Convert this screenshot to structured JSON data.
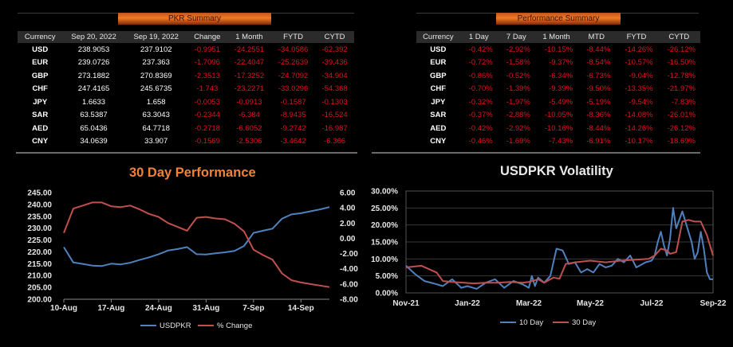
{
  "pkr_summary": {
    "title": "PKR Summary",
    "headers": [
      "Currency",
      "Sep 20, 2022",
      "Sep 19, 2022",
      "Change",
      "1 Month",
      "FYTD",
      "CYTD"
    ],
    "rows": [
      [
        "USD",
        "238.9053",
        "237.9102",
        "-0.9951",
        "-24.2551",
        "-34.0586",
        "-62.392"
      ],
      [
        "EUR",
        "239.0726",
        "237.363",
        "-1.7096",
        "-22.4047",
        "-25.2639",
        "-39.436"
      ],
      [
        "GBP",
        "273.1882",
        "270.8369",
        "-2.3513",
        "-17.3252",
        "-24.7092",
        "-34.904"
      ],
      [
        "CHF",
        "247.4165",
        "245.6735",
        "-1.743",
        "-23.2271",
        "-33.0296",
        "-54.368"
      ],
      [
        "JPY",
        "1.6633",
        "1.658",
        "-0.0053",
        "-0.0913",
        "-0.1587",
        "-0.1303"
      ],
      [
        "SAR",
        "63.5387",
        "63.3043",
        "-0.2344",
        "-6.384",
        "-8.9435",
        "-16.524"
      ],
      [
        "AED",
        "65.0436",
        "64.7718",
        "-0.2718",
        "-6.6052",
        "-9.2742",
        "-16.987"
      ],
      [
        "CNY",
        "34.0639",
        "33.907",
        "-0.1569",
        "-2.5306",
        "-3.4642",
        "-6.366"
      ]
    ]
  },
  "performance_summary": {
    "title": "Performance Summary",
    "headers": [
      "Currency",
      "1 Day",
      "7 Day",
      "1 Month",
      "MTD",
      "FYTD",
      "CYTD"
    ],
    "rows": [
      [
        "USD",
        "-0.42%",
        "-2.92%",
        "-10.15%",
        "-8.44%",
        "-14.26%",
        "-26.12%"
      ],
      [
        "EUR",
        "-0.72%",
        "-1.58%",
        "-9.37%",
        "-8.54%",
        "-10.57%",
        "-16.50%"
      ],
      [
        "GBP",
        "-0.86%",
        "-0.52%",
        "-6.34%",
        "-6.73%",
        "-9.04%",
        "-12.78%"
      ],
      [
        "CHF",
        "-0.70%",
        "-1.39%",
        "-9.39%",
        "-9.50%",
        "-13.35%",
        "-21.97%"
      ],
      [
        "JPY",
        "-0.32%",
        "-1.97%",
        "-5.49%",
        "-5.19%",
        "-9.54%",
        "-7.83%"
      ],
      [
        "SAR",
        "-0.37%",
        "-2.88%",
        "-10.05%",
        "-8.36%",
        "-14.08%",
        "-26.01%"
      ],
      [
        "AED",
        "-0.42%",
        "-2.92%",
        "-10.16%",
        "-8.44%",
        "-14.26%",
        "-26.12%"
      ],
      [
        "CNY",
        "-0.46%",
        "-1.69%",
        "-7.43%",
        "-6.91%",
        "-10.17%",
        "-18.69%"
      ]
    ]
  },
  "colors": {
    "accent": "#f0823a",
    "negative": "#e0141c",
    "series_blue": "#4f81bd",
    "series_red": "#c0504d",
    "grid": "#3a3a3a"
  },
  "chart_data": [
    {
      "type": "line",
      "title": "30 Day Performance",
      "x_tick_labels": [
        "10-Aug",
        "17-Aug",
        "24-Aug",
        "31-Aug",
        "7-Sep",
        "14-Sep"
      ],
      "x_tick_index": [
        0,
        5,
        10,
        15,
        20,
        25
      ],
      "y_left_ticks": [
        "245.00",
        "240.00",
        "235.00",
        "230.00",
        "225.00",
        "220.00",
        "215.00",
        "210.00",
        "205.00",
        "200.00"
      ],
      "y_right_ticks": [
        "6.00",
        "4.00",
        "2.00",
        "0.00",
        "-2.00",
        "-4.00",
        "-6.00",
        "-8.00"
      ],
      "ylim_left": [
        200,
        245
      ],
      "ylim_right": [
        -8,
        6
      ],
      "legend_position": "bottom",
      "series": [
        {
          "name": "USDPKR",
          "axis": "left",
          "values": [
            222.0,
            215.5,
            214.9,
            214.2,
            214.0,
            215.0,
            214.7,
            215.4,
            216.6,
            217.7,
            219.0,
            220.6,
            221.2,
            222.0,
            219.0,
            218.9,
            219.4,
            219.8,
            220.4,
            222.5,
            228.0,
            228.9,
            229.8,
            234.0,
            235.8,
            236.3,
            237.1,
            237.9,
            238.9
          ]
        },
        {
          "name": "% Change",
          "axis": "right",
          "values": [
            0.7,
            3.9,
            4.3,
            4.7,
            4.7,
            4.2,
            4.1,
            4.3,
            3.8,
            3.2,
            2.8,
            2.0,
            1.5,
            1.0,
            2.7,
            2.8,
            2.6,
            2.5,
            1.9,
            0.9,
            -1.5,
            -2.2,
            -2.8,
            -4.6,
            -5.5,
            -5.8,
            -6.0,
            -6.2,
            -6.4
          ]
        }
      ]
    },
    {
      "type": "line",
      "title": "USDPKR Volatility",
      "x_tick_labels": [
        "Nov-21",
        "Jan-22",
        "Mar-22",
        "May-22",
        "Jul-22",
        "Sep-22"
      ],
      "x_tick_positions": [
        0,
        2,
        4,
        6,
        8,
        10
      ],
      "y_ticks": [
        "30.00%",
        "25.00%",
        "20.00%",
        "15.00%",
        "10.00%",
        "5.00%",
        "0.00%"
      ],
      "ylim": [
        0,
        30
      ],
      "legend_position": "bottom",
      "series": [
        {
          "name": "10 Day",
          "x": [
            0,
            0.3,
            0.6,
            0.9,
            1.2,
            1.5,
            1.8,
            2.0,
            2.3,
            2.6,
            2.9,
            3.2,
            3.5,
            3.8,
            4.0,
            4.1,
            4.2,
            4.3,
            4.5,
            4.7,
            4.9,
            5.1,
            5.3,
            5.5,
            5.7,
            5.9,
            6.1,
            6.3,
            6.5,
            6.7,
            6.9,
            7.1,
            7.3,
            7.5,
            7.8,
            8.0,
            8.1,
            8.2,
            8.3,
            8.4,
            8.5,
            8.6,
            8.7,
            8.8,
            9.0,
            9.2,
            9.3,
            9.4,
            9.5,
            9.6,
            9.7,
            9.8,
            9.9,
            10.0
          ],
          "values": [
            8.0,
            5.5,
            3.5,
            2.8,
            2.0,
            4.0,
            1.5,
            2.0,
            1.2,
            3.0,
            4.0,
            1.5,
            3.5,
            2.5,
            1.5,
            5.0,
            2.0,
            4.5,
            3.0,
            5.0,
            13.0,
            12.5,
            8.5,
            9.0,
            6.0,
            7.0,
            6.0,
            8.5,
            7.5,
            8.0,
            10.0,
            9.0,
            11.0,
            7.5,
            9.0,
            9.5,
            11.0,
            15.0,
            18.0,
            14.0,
            11.0,
            16.0,
            25.0,
            19.0,
            24.0,
            18.0,
            15.0,
            10.0,
            12.0,
            18.0,
            13.0,
            6.0,
            4.0,
            4.0
          ]
        },
        {
          "name": "30 Day",
          "x": [
            0,
            0.5,
            1.0,
            1.2,
            1.5,
            1.9,
            2.2,
            2.6,
            3.0,
            3.4,
            3.8,
            4.0,
            4.3,
            4.5,
            4.8,
            5.0,
            5.2,
            5.5,
            6.0,
            6.5,
            7.0,
            7.5,
            7.9,
            8.1,
            8.3,
            8.5,
            8.6,
            8.8,
            9.0,
            9.2,
            9.4,
            9.6,
            9.8,
            10.0
          ],
          "values": [
            7.5,
            8.0,
            6.0,
            3.5,
            3.2,
            3.0,
            2.8,
            3.0,
            3.0,
            3.2,
            3.0,
            3.2,
            4.0,
            3.0,
            4.5,
            4.2,
            8.5,
            9.0,
            9.5,
            9.0,
            9.5,
            9.8,
            10.0,
            11.0,
            13.0,
            12.5,
            11.5,
            12.0,
            21.0,
            21.5,
            21.0,
            21.0,
            17.0,
            11.0
          ]
        }
      ]
    }
  ]
}
